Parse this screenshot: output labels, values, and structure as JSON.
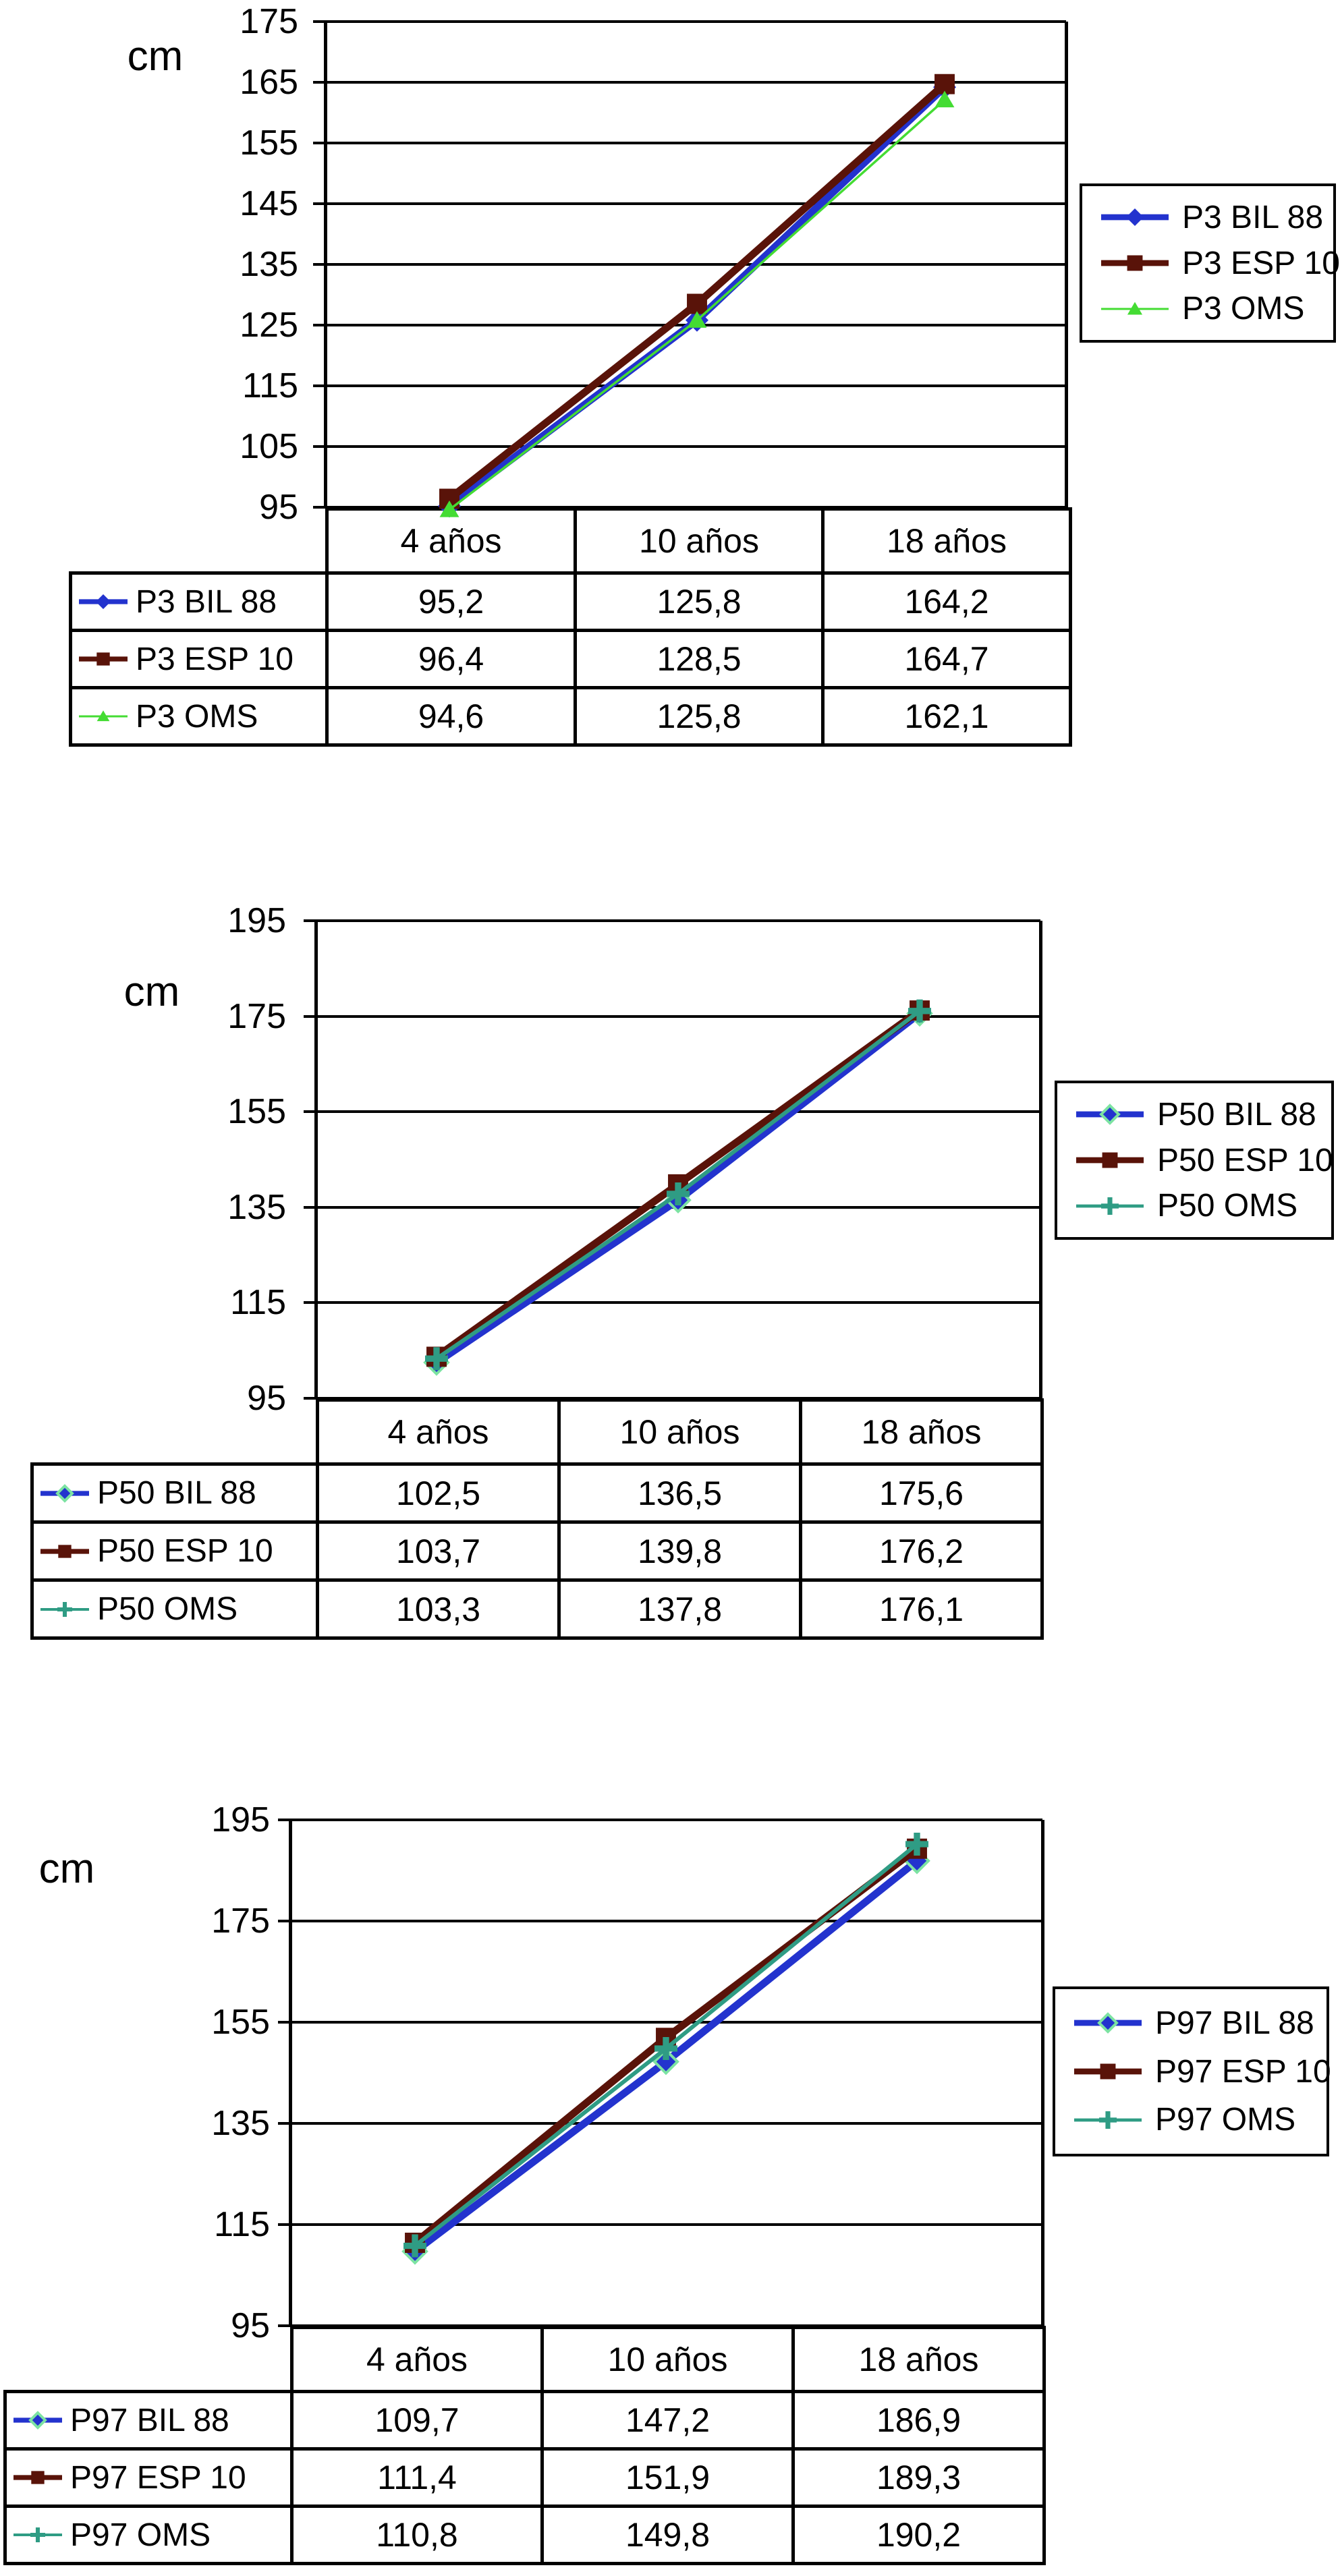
{
  "page": {
    "background": "#ffffff",
    "text_color": "#000000"
  },
  "chart_data": [
    {
      "type": "line",
      "unit": "cm",
      "categories": [
        "4 años",
        "10 años",
        "18 años"
      ],
      "ylim": [
        95,
        175
      ],
      "y_ticks": [
        95,
        105,
        115,
        125,
        135,
        145,
        155,
        165,
        175
      ],
      "y_tick_labels": [
        "95",
        "105",
        "115",
        "125",
        "135",
        "145",
        "155",
        "165",
        "175"
      ],
      "grid": "horizontal",
      "legend_position": "right",
      "data_table_below": true,
      "series": [
        {
          "name": "P3 BIL 88",
          "color": "#2333CE",
          "marker": "diamond",
          "marker_stroke": "",
          "line_width": 11,
          "values": [
            95.2,
            125.8,
            164.2
          ],
          "display": [
            "95,2",
            "125,8",
            "164,2"
          ]
        },
        {
          "name": "P3 ESP 10",
          "color": "#591309",
          "marker": "square",
          "marker_stroke": "",
          "line_width": 11,
          "values": [
            96.4,
            128.5,
            164.7
          ],
          "display": [
            "96,4",
            "128,5",
            "164,7"
          ]
        },
        {
          "name": "P3 OMS",
          "color": "#44DC33",
          "marker": "triangle",
          "marker_stroke": "",
          "line_width": 3.5,
          "values": [
            94.6,
            125.8,
            162.1
          ],
          "display": [
            "94,6",
            "125,8",
            "162,1"
          ]
        }
      ]
    },
    {
      "type": "line",
      "unit": "cm",
      "categories": [
        "4 años",
        "10 años",
        "18 años"
      ],
      "ylim": [
        95,
        195
      ],
      "y_ticks": [
        95,
        115,
        135,
        155,
        175,
        195
      ],
      "y_tick_labels": [
        "95",
        "115",
        "135",
        "155",
        "175",
        "195"
      ],
      "grid": "horizontal",
      "legend_position": "right",
      "data_table_below": true,
      "series": [
        {
          "name": "P50 BIL 88",
          "color": "#2333CE",
          "marker": "diamond",
          "marker_stroke": "#7CE3A2",
          "line_width": 11,
          "values": [
            102.5,
            136.5,
            175.6
          ],
          "display": [
            "102,5",
            "136,5",
            "175,6"
          ]
        },
        {
          "name": "P50 ESP 10",
          "color": "#591309",
          "marker": "square",
          "marker_stroke": "",
          "line_width": 11,
          "values": [
            103.7,
            139.8,
            176.2
          ],
          "display": [
            "103,7",
            "139,8",
            "176,2"
          ]
        },
        {
          "name": "P50 OMS",
          "color": "#2F9C84",
          "marker": "plus",
          "marker_stroke": "",
          "line_width": 6,
          "values": [
            103.3,
            137.8,
            176.1
          ],
          "display": [
            "103,3",
            "137,8",
            "176,1"
          ]
        }
      ]
    },
    {
      "type": "line",
      "unit": "cm",
      "categories": [
        "4 años",
        "10 años",
        "18 años"
      ],
      "ylim": [
        95,
        195
      ],
      "y_ticks": [
        95,
        115,
        135,
        155,
        175,
        195
      ],
      "y_tick_labels": [
        "95",
        "115",
        "135",
        "155",
        "175",
        "195"
      ],
      "grid": "horizontal",
      "legend_position": "right",
      "data_table_below": true,
      "series": [
        {
          "name": "P97 BIL 88",
          "color": "#2333CE",
          "marker": "diamond",
          "marker_stroke": "#7CE3A2",
          "line_width": 11,
          "values": [
            109.7,
            147.2,
            186.9
          ],
          "display": [
            "109,7",
            "147,2",
            "186,9"
          ]
        },
        {
          "name": "P97 ESP 10",
          "color": "#591309",
          "marker": "square",
          "marker_stroke": "",
          "line_width": 11,
          "values": [
            111.4,
            151.9,
            189.3
          ],
          "display": [
            "111,4",
            "151,9",
            "189,3"
          ]
        },
        {
          "name": "P97 OMS",
          "color": "#2F9C84",
          "marker": "plus",
          "marker_stroke": "",
          "line_width": 6,
          "values": [
            110.8,
            149.8,
            190.2
          ],
          "display": [
            "110,8",
            "149,8",
            "190,2"
          ]
        }
      ]
    }
  ]
}
